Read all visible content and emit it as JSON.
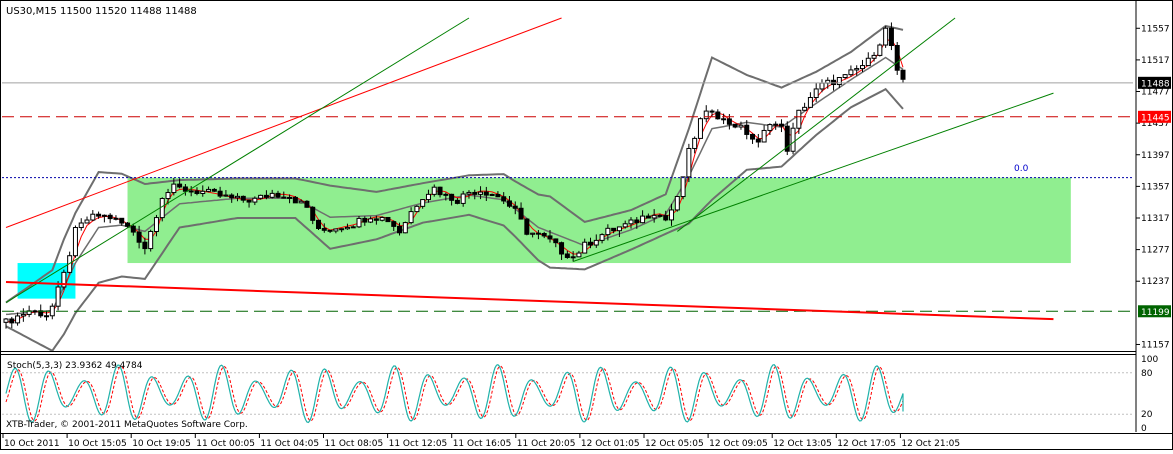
{
  "header": {
    "symbol": "US30,M15",
    "ohlc": "11500 11520 11488 11488"
  },
  "indicator": {
    "label": "Stoch(5,3,3) 23.9362 49.4784",
    "levels": [
      "100",
      "80",
      "20",
      "0"
    ]
  },
  "watermark": "XTB-Trader, © 2001-2011 MetaQuotes Software Corp.",
  "fib_label": "0.0",
  "price_tags": {
    "current": "11488",
    "resistance": "11445",
    "support": "11199"
  },
  "colors": {
    "background": "#ffffff",
    "grid": "#c0c0c0",
    "candle": "#000000",
    "bollinger": "#6e6e6e",
    "ma": "#ff0000",
    "range_box": "#90ee90",
    "start_box": "#00ffff",
    "trend_red": "#ff0000",
    "trend_green": "#008000",
    "stoch_main": "#20b2aa",
    "stoch_signal": "#ff0000",
    "tag_dark": "#000000",
    "tag_red": "#ff0000",
    "tag_green": "#006400"
  },
  "chart_data": {
    "type": "candlestick",
    "symbol": "US30",
    "timeframe": "M15",
    "ylim": [
      11150,
      11570
    ],
    "y_ticks": [
      "11557",
      "11517",
      "11477",
      "11437",
      "11397",
      "11357",
      "11317",
      "11277",
      "11237",
      "11157"
    ],
    "x_ticks": [
      "10 Oct 2011",
      "10 Oct 15:05",
      "10 Oct 19:05",
      "11 Oct 00:05",
      "11 Oct 04:05",
      "11 Oct 08:05",
      "11 Oct 12:05",
      "11 Oct 16:05",
      "11 Oct 20:05",
      "12 Oct 01:05",
      "12 Oct 05:05",
      "12 Oct 09:05",
      "12 Oct 13:05",
      "12 Oct 17:05",
      "12 Oct 21:05"
    ],
    "price_path": [
      [
        0,
        11185
      ],
      [
        4,
        11200
      ],
      [
        7,
        11195
      ],
      [
        8,
        11205
      ],
      [
        10,
        11245
      ],
      [
        12,
        11300
      ],
      [
        14,
        11315
      ],
      [
        16,
        11320
      ],
      [
        18,
        11318
      ],
      [
        20,
        11310
      ],
      [
        22,
        11300
      ],
      [
        24,
        11280
      ],
      [
        25,
        11300
      ],
      [
        27,
        11345
      ],
      [
        29,
        11355
      ],
      [
        32,
        11352
      ],
      [
        34,
        11350
      ],
      [
        37,
        11345
      ],
      [
        40,
        11340
      ],
      [
        43,
        11340
      ],
      [
        46,
        11348
      ],
      [
        49,
        11345
      ],
      [
        52,
        11330
      ],
      [
        54,
        11300
      ],
      [
        57,
        11305
      ],
      [
        60,
        11310
      ],
      [
        63,
        11320
      ],
      [
        66,
        11315
      ],
      [
        68,
        11300
      ],
      [
        70,
        11325
      ],
      [
        72,
        11345
      ],
      [
        74,
        11355
      ],
      [
        76,
        11345
      ],
      [
        78,
        11340
      ],
      [
        80,
        11350
      ],
      [
        82,
        11352
      ],
      [
        84,
        11348
      ],
      [
        86,
        11340
      ],
      [
        88,
        11325
      ],
      [
        90,
        11300
      ],
      [
        92,
        11295
      ],
      [
        94,
        11288
      ],
      [
        96,
        11275
      ],
      [
        98,
        11268
      ],
      [
        100,
        11282
      ],
      [
        102,
        11292
      ],
      [
        104,
        11300
      ],
      [
        106,
        11305
      ],
      [
        108,
        11310
      ],
      [
        110,
        11318
      ],
      [
        112,
        11325
      ],
      [
        114,
        11315
      ],
      [
        116,
        11340
      ],
      [
        118,
        11400
      ],
      [
        120,
        11440
      ],
      [
        122,
        11455
      ],
      [
        124,
        11440
      ],
      [
        126,
        11435
      ],
      [
        128,
        11425
      ],
      [
        130,
        11410
      ],
      [
        132,
        11440
      ],
      [
        134,
        11430
      ],
      [
        135,
        11405
      ],
      [
        137,
        11450
      ],
      [
        139,
        11470
      ],
      [
        141,
        11485
      ],
      [
        143,
        11490
      ],
      [
        145,
        11495
      ],
      [
        147,
        11505
      ],
      [
        149,
        11515
      ],
      [
        151,
        11540
      ],
      [
        152,
        11555
      ],
      [
        153,
        11535
      ],
      [
        154,
        11500
      ],
      [
        155,
        11488
      ]
    ],
    "mean_path": [
      [
        0,
        11195
      ],
      [
        8,
        11200
      ],
      [
        12,
        11260
      ],
      [
        16,
        11305
      ],
      [
        20,
        11308
      ],
      [
        24,
        11300
      ],
      [
        30,
        11335
      ],
      [
        40,
        11342
      ],
      [
        50,
        11342
      ],
      [
        56,
        11318
      ],
      [
        64,
        11320
      ],
      [
        72,
        11336
      ],
      [
        80,
        11346
      ],
      [
        86,
        11340
      ],
      [
        92,
        11305
      ],
      [
        100,
        11282
      ],
      [
        108,
        11302
      ],
      [
        114,
        11322
      ],
      [
        118,
        11370
      ],
      [
        122,
        11430
      ],
      [
        128,
        11438
      ],
      [
        134,
        11432
      ],
      [
        140,
        11462
      ],
      [
        146,
        11492
      ],
      [
        152,
        11520
      ],
      [
        155,
        11505
      ]
    ],
    "mean_half_width": [
      [
        0,
        15
      ],
      [
        10,
        60
      ],
      [
        16,
        70
      ],
      [
        24,
        60
      ],
      [
        30,
        30
      ],
      [
        40,
        25
      ],
      [
        50,
        25
      ],
      [
        56,
        40
      ],
      [
        64,
        30
      ],
      [
        72,
        25
      ],
      [
        80,
        25
      ],
      [
        88,
        35
      ],
      [
        94,
        45
      ],
      [
        100,
        30
      ],
      [
        108,
        25
      ],
      [
        114,
        25
      ],
      [
        118,
        60
      ],
      [
        122,
        90
      ],
      [
        128,
        60
      ],
      [
        134,
        50
      ],
      [
        140,
        40
      ],
      [
        146,
        35
      ],
      [
        152,
        40
      ],
      [
        155,
        50
      ]
    ],
    "range_box": {
      "x0": 21,
      "x1": 184,
      "y_top": 11368,
      "y_bottom": 11260
    },
    "start_box": {
      "x0": 2,
      "x1": 12,
      "y_top": 11260,
      "y_bottom": 11215
    },
    "fib_level": 11368,
    "horizontal_lines": [
      {
        "price": 11445,
        "style": "dashed",
        "color": "#cc0000"
      },
      {
        "price": 11199,
        "style": "dashed",
        "color": "#006400"
      },
      {
        "price": 11368,
        "style": "dotted",
        "color": "#0000aa"
      },
      {
        "price": 11488,
        "style": "solid",
        "color": "#a0a0a0"
      }
    ],
    "trend_lines": [
      {
        "color": "#ff0000",
        "width": 1,
        "points": [
          [
            0,
            11305
          ],
          [
            96,
            11570
          ]
        ]
      },
      {
        "color": "#008000",
        "width": 1,
        "points": [
          [
            0,
            11210
          ],
          [
            80,
            11570
          ]
        ]
      },
      {
        "color": "#ff0000",
        "width": 2,
        "points": [
          [
            0,
            11236
          ],
          [
            181,
            11189
          ]
        ]
      },
      {
        "color": "#008000",
        "width": 1,
        "points": [
          [
            98,
            11262
          ],
          [
            181,
            11475
          ]
        ]
      },
      {
        "color": "#008000",
        "width": 1,
        "points": [
          [
            116,
            11300
          ],
          [
            164,
            11570
          ]
        ]
      }
    ],
    "stochastic": {
      "k_period": 5,
      "d_period": 3,
      "slowing": 3,
      "main": 23.9362,
      "signal": 49.4784,
      "ylim": [
        0,
        100
      ],
      "cycles": 26,
      "x_range": [
        0,
        155
      ]
    }
  }
}
